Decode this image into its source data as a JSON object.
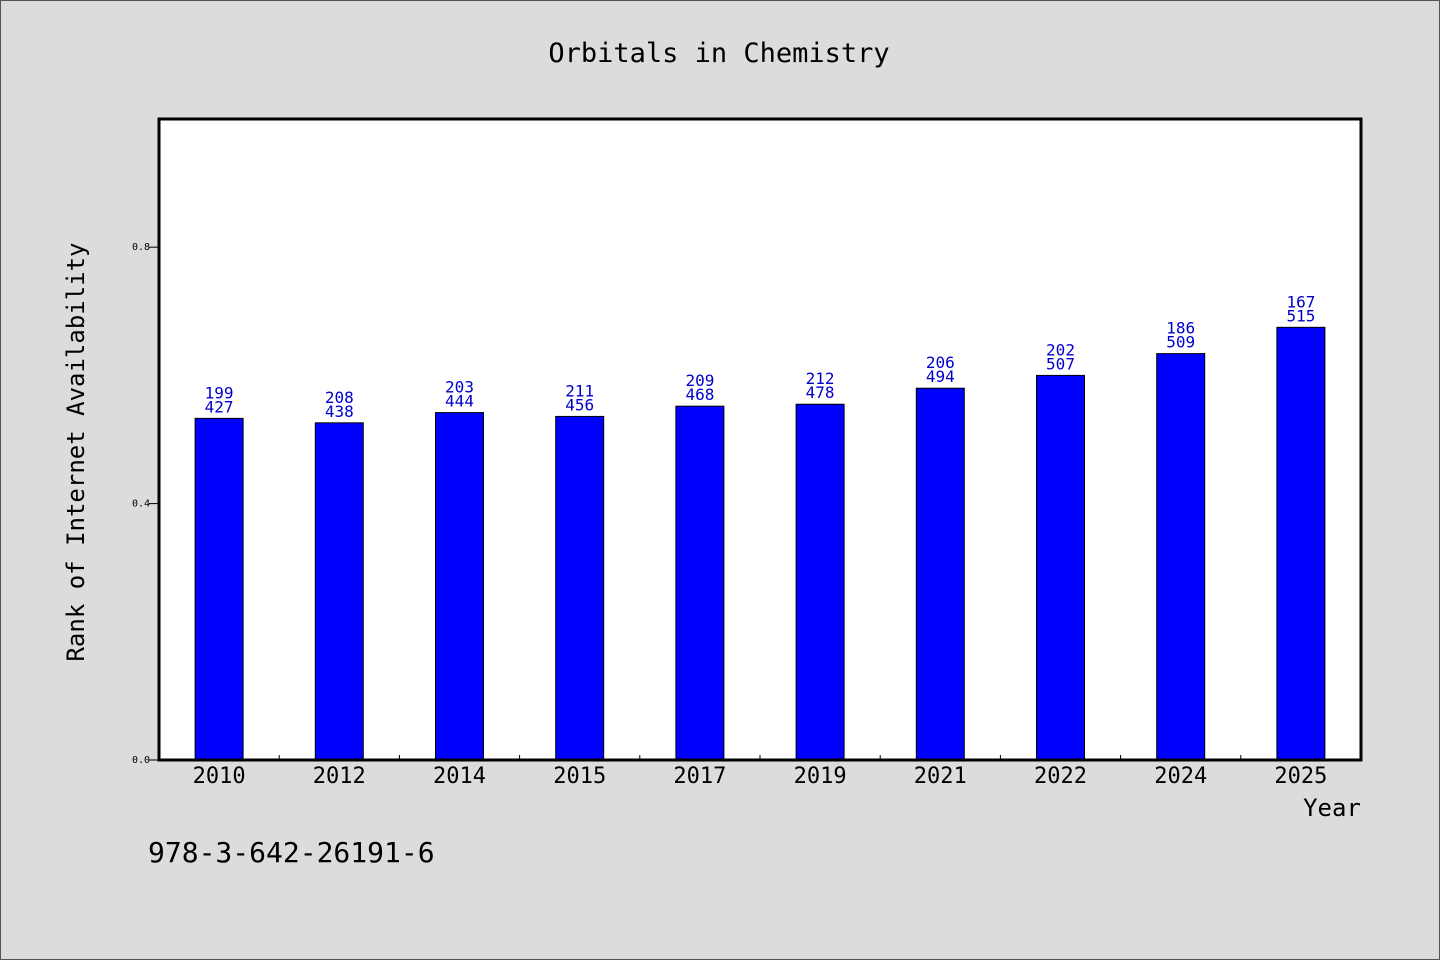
{
  "chart_data": {
    "type": "bar",
    "title": "Orbitals in Chemistry",
    "xlabel": "Year",
    "ylabel": "Rank of Internet Availability",
    "categories": [
      "2010",
      "2012",
      "2014",
      "2015",
      "2017",
      "2019",
      "2021",
      "2022",
      "2024",
      "2025"
    ],
    "values": [
      0.533,
      0.526,
      0.542,
      0.536,
      0.552,
      0.555,
      0.58,
      0.6,
      0.634,
      0.675
    ],
    "data_labels": [
      [
        "199",
        "427"
      ],
      [
        "208",
        "438"
      ],
      [
        "203",
        "444"
      ],
      [
        "211",
        "456"
      ],
      [
        "209",
        "468"
      ],
      [
        "212",
        "478"
      ],
      [
        "206",
        "494"
      ],
      [
        "202",
        "507"
      ],
      [
        "186",
        "509"
      ],
      [
        "167",
        "515"
      ]
    ],
    "ylim": [
      0,
      1.0
    ],
    "yticks": [
      0.0,
      0.4,
      0.8
    ],
    "ytick_labels": [
      "0.0",
      "0.4",
      "0.8"
    ],
    "grid": false,
    "bar_color": "#0000ff",
    "label_color": "#0000cc"
  },
  "footer_text": "978-3-642-26191-6"
}
